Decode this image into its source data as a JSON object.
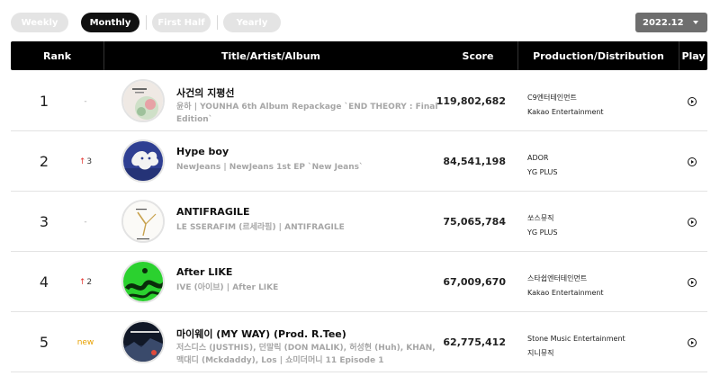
{
  "filters": {
    "tabs": [
      {
        "label": "Weekly",
        "active": false
      },
      {
        "label": "Monthly",
        "active": true
      },
      {
        "label": "First Half",
        "active": false
      },
      {
        "label": "Yearly",
        "active": false
      }
    ],
    "period": {
      "value": "2022.12",
      "icon": "caret-down-icon"
    }
  },
  "table": {
    "headers": {
      "rank": "Rank",
      "title": "Title/Artist/Album",
      "score": "Score",
      "production": "Production/Distribution",
      "play": "Play"
    },
    "rows": [
      {
        "rank": "1",
        "change": "-",
        "change_type": "same",
        "title": "사건의 지평선",
        "subtitle": "윤하 | YOUNHA 6th Album Repackage `END THEORY : Final Edition`",
        "score": "119,802,682",
        "production": "C9엔터테인먼트",
        "distribution": "Kakao Entertainment"
      },
      {
        "rank": "2",
        "change": "3",
        "change_type": "up",
        "title": "Hype boy",
        "subtitle": "NewJeans | NewJeans 1st EP `New Jeans`",
        "score": "84,541,198",
        "production": "ADOR",
        "distribution": "YG PLUS"
      },
      {
        "rank": "3",
        "change": "-",
        "change_type": "same",
        "title": "ANTIFRAGILE",
        "subtitle": "LE SSERAFIM (르세라핌) | ANTIFRAGILE",
        "score": "75,065,784",
        "production": "쏘스뮤직",
        "distribution": "YG PLUS"
      },
      {
        "rank": "4",
        "change": "2",
        "change_type": "up",
        "title": "After LIKE",
        "subtitle": "IVE (아이브) | After LIKE",
        "score": "67,009,670",
        "production": "스타쉽엔터테인먼트",
        "distribution": "Kakao Entertainment"
      },
      {
        "rank": "5",
        "change": "new",
        "change_type": "new",
        "title": "마이웨이 (MY WAY) (Prod. R.Tee)",
        "subtitle": "저스디스 (JUSTHIS), 던말릭 (DON MALIK), 허성현 (Huh), KHAN, 맥대디 (Mckdaddy), Los | 쇼미더머니 11 Episode 1",
        "score": "62,775,412",
        "production": "Stone Music Entertainment",
        "distribution": "지니뮤직"
      }
    ]
  }
}
